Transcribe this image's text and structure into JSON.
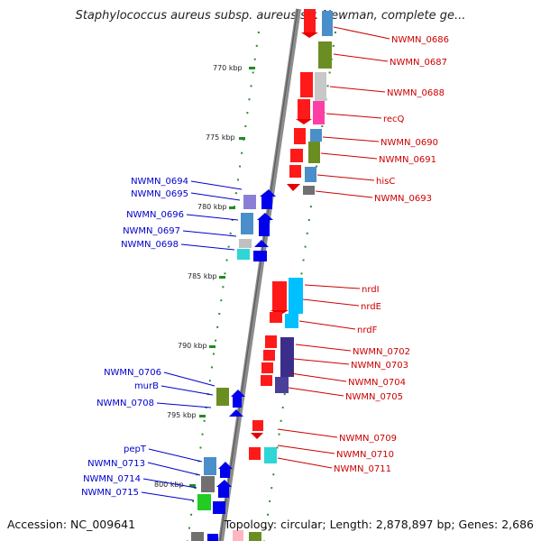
{
  "title": "Staphylococcus aureus subsp. aureus str. Newman, complete ge...",
  "footer": {
    "accession": "Accession: NC_009641",
    "summary": "Topology: circular; Length: 2,878,897 bp; Genes: 2,686"
  },
  "colors": {
    "forward_label": "#0000cc",
    "reverse_label": "#cc0000",
    "backbone": "#8c8c8c",
    "tick": "#228b22"
  },
  "ticks": [
    "770 kbp",
    "775 kbp",
    "780 kbp",
    "785 kbp",
    "790 kbp",
    "795 kbp",
    "800 kbp"
  ],
  "genes_reverse": [
    "NWMN_0686",
    "NWMN_0687",
    "NWMN_0688",
    "recQ",
    "NWMN_0690",
    "NWMN_0691",
    "hisC",
    "NWMN_0693",
    "nrdI",
    "nrdE",
    "nrdF",
    "NWMN_0702",
    "NWMN_0703",
    "NWMN_0704",
    "NWMN_0705",
    "NWMN_0709",
    "NWMN_0710",
    "NWMN_0711"
  ],
  "genes_forward": [
    "NWMN_0694",
    "NWMN_0695",
    "NWMN_0696",
    "NWMN_0697",
    "NWMN_0698",
    "NWMN_0706",
    "murB",
    "NWMN_0708",
    "pepT",
    "NWMN_0713",
    "NWMN_0714",
    "NWMN_0715"
  ]
}
